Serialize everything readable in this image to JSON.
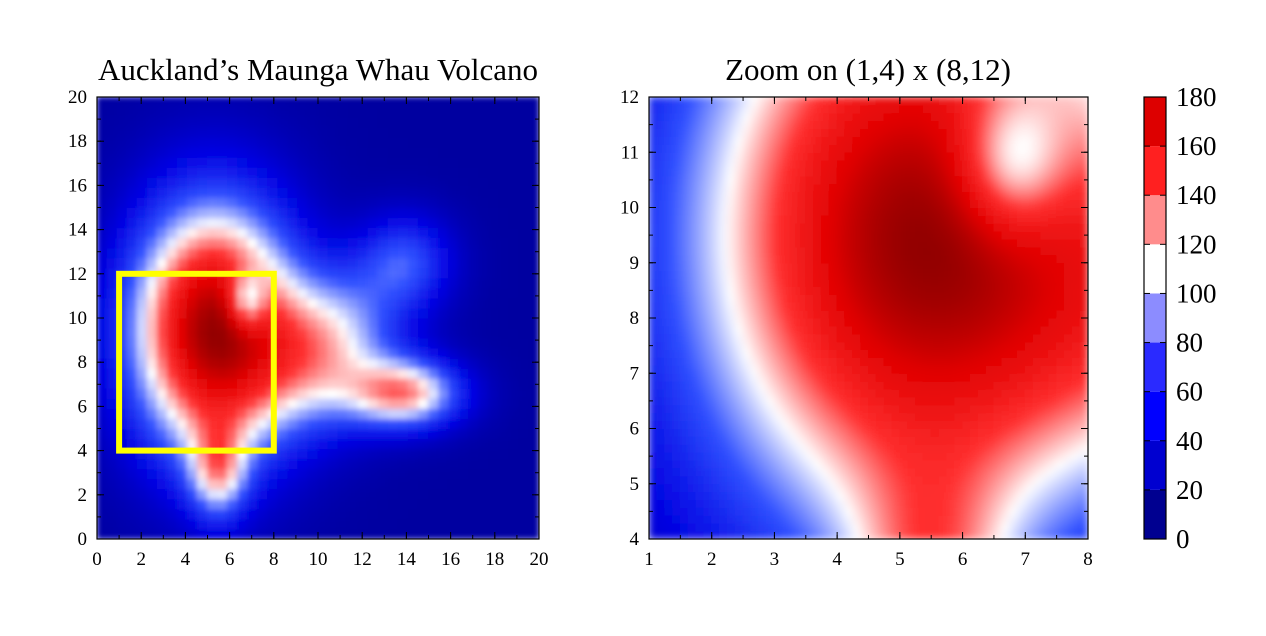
{
  "colors": {
    "colormap_stops": [
      "#000080",
      "#0000e0",
      "#3050ff",
      "#ffffff",
      "#ff3030",
      "#e00000",
      "#800000"
    ],
    "highlight_box": "#ffff00",
    "axis": "#000000"
  },
  "chart_data": [
    {
      "type": "heatmap",
      "title": "Auckland’s Maunga Whau Volcano",
      "xlabel": "",
      "ylabel": "",
      "xlim": [
        0,
        20
      ],
      "ylim": [
        0,
        20
      ],
      "xticks": [
        "0",
        "2",
        "4",
        "6",
        "8",
        "10",
        "12",
        "14",
        "16",
        "18",
        "20"
      ],
      "yticks": [
        "0",
        "2",
        "4",
        "6",
        "8",
        "10",
        "12",
        "14",
        "16",
        "18",
        "20"
      ],
      "value_range": [
        0,
        180
      ],
      "peaks": [
        {
          "x": 5.0,
          "y": 8.5,
          "value": 175
        },
        {
          "x": 6.5,
          "y": 10.8,
          "value": 95
        },
        {
          "x": 14.5,
          "y": 6.5,
          "value": 110
        },
        {
          "x": 14.0,
          "y": 13.0,
          "value": 85
        }
      ],
      "highlight_rectangle": {
        "x": [
          1,
          8
        ],
        "y": [
          4,
          12
        ],
        "color": "yellow"
      }
    },
    {
      "type": "heatmap",
      "title": "Zoom on (1,4) x (8,12)",
      "xlabel": "",
      "ylabel": "",
      "xlim": [
        1,
        8
      ],
      "ylim": [
        4,
        12
      ],
      "xticks": [
        "1",
        "2",
        "3",
        "4",
        "5",
        "6",
        "7",
        "8"
      ],
      "yticks": [
        "4",
        "5",
        "6",
        "7",
        "8",
        "9",
        "10",
        "11",
        "12"
      ],
      "value_range": [
        0,
        180
      ]
    }
  ],
  "colorbar": {
    "ticks": [
      "0",
      "20",
      "40",
      "60",
      "80",
      "100",
      "120",
      "140",
      "160",
      "180"
    ],
    "levels": [
      0,
      20,
      40,
      60,
      80,
      100,
      120,
      140,
      160,
      180
    ],
    "level_colors": [
      "#000090",
      "#0000d0",
      "#0000ff",
      "#2a2aff",
      "#8c8cff",
      "#ffffff",
      "#ff8c8c",
      "#ff2020",
      "#dd0000",
      "#990000"
    ]
  }
}
